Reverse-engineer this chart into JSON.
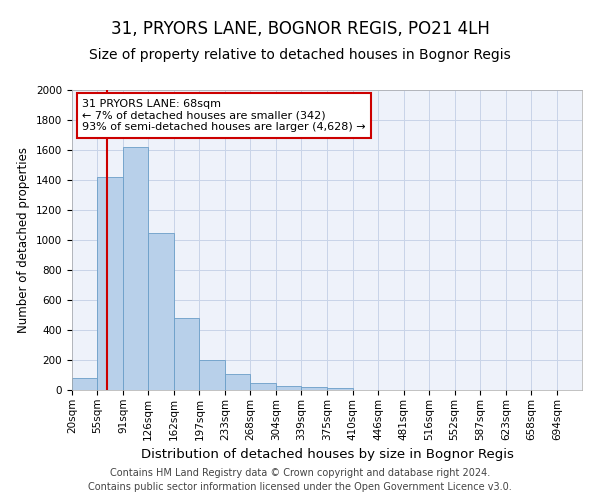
{
  "title": "31, PRYORS LANE, BOGNOR REGIS, PO21 4LH",
  "subtitle": "Size of property relative to detached houses in Bognor Regis",
  "xlabel": "Distribution of detached houses by size in Bognor Regis",
  "ylabel": "Number of detached properties",
  "footnote1": "Contains HM Land Registry data © Crown copyright and database right 2024.",
  "footnote2": "Contains public sector information licensed under the Open Government Licence v3.0.",
  "annotation_title": "31 PRYORS LANE: 68sqm",
  "annotation_line1": "← 7% of detached houses are smaller (342)",
  "annotation_line2": "93% of semi-detached houses are larger (4,628) →",
  "property_size_sqm": 68,
  "bar_left_edges": [
    20,
    55,
    91,
    126,
    162,
    197,
    233,
    268,
    304,
    339,
    375,
    410,
    446,
    481,
    516,
    552,
    587,
    623,
    658,
    694
  ],
  "bar_widths": [
    35,
    36,
    35,
    36,
    35,
    36,
    35,
    36,
    35,
    36,
    35,
    36,
    35,
    35,
    36,
    35,
    36,
    35,
    36,
    35
  ],
  "bar_heights": [
    80,
    1420,
    1620,
    1050,
    480,
    200,
    110,
    45,
    30,
    20,
    15,
    0,
    0,
    0,
    0,
    0,
    0,
    0,
    0,
    0
  ],
  "bar_color": "#b8d0ea",
  "bar_edge_color": "#6a9ec8",
  "vline_color": "#cc0000",
  "vline_x": 68,
  "xlim_left": 20,
  "xlim_right": 729,
  "ylim": [
    0,
    2000
  ],
  "yticks": [
    0,
    200,
    400,
    600,
    800,
    1000,
    1200,
    1400,
    1600,
    1800,
    2000
  ],
  "grid_color": "#c8d4e8",
  "background_color": "#eef2fa",
  "annotation_box_color": "#ffffff",
  "annotation_box_edge": "#cc0000",
  "title_fontsize": 12,
  "subtitle_fontsize": 10,
  "xlabel_fontsize": 9.5,
  "ylabel_fontsize": 8.5,
  "tick_label_fontsize": 7.5,
  "annotation_fontsize": 8,
  "footnote_fontsize": 7
}
